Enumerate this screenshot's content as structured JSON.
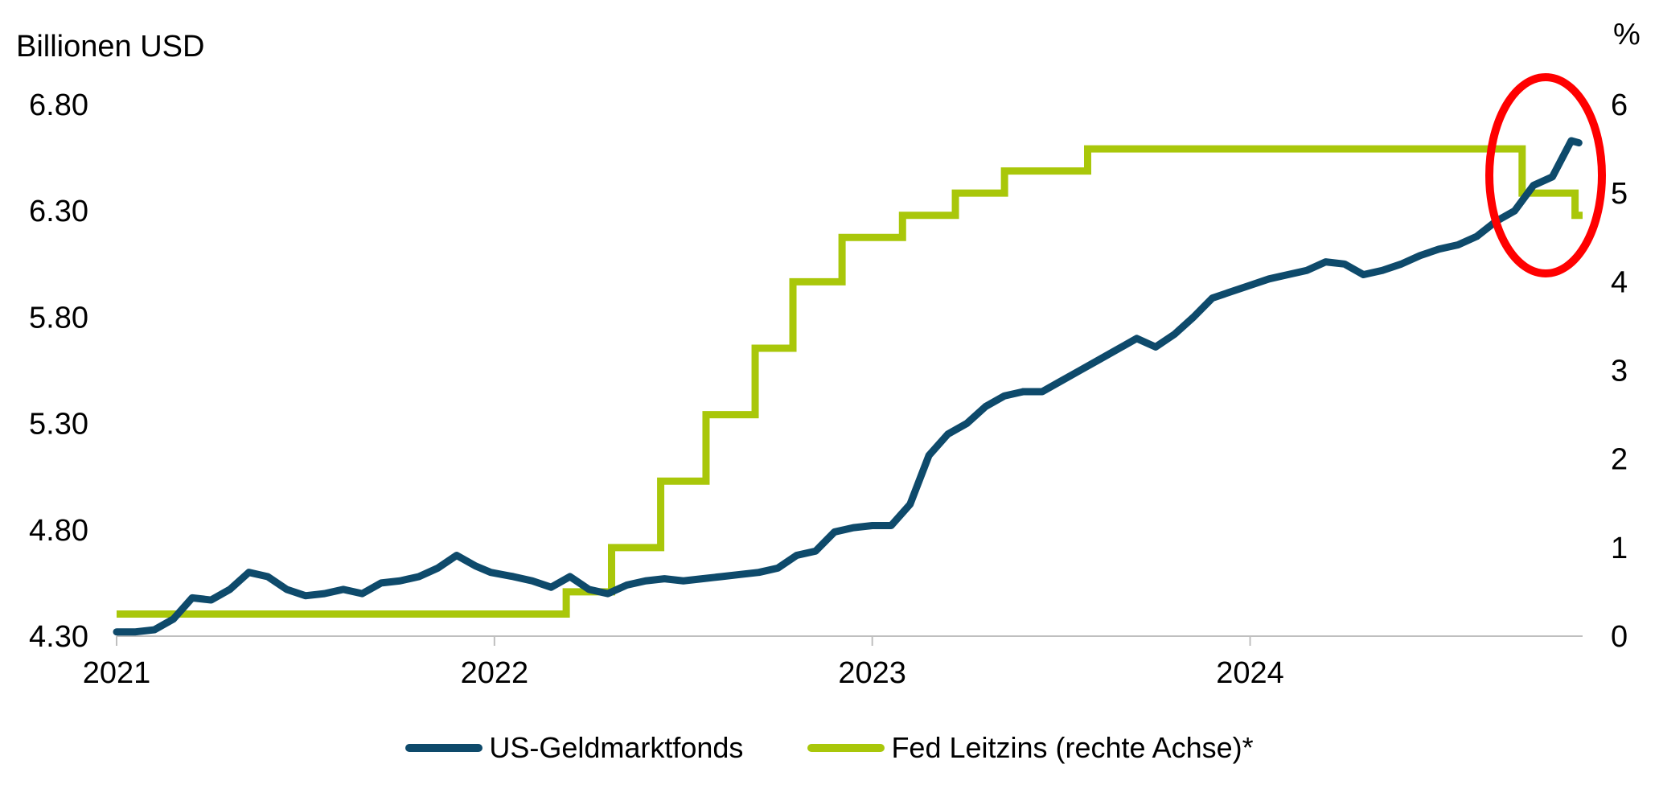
{
  "chart_data": {
    "type": "line",
    "ylabel_left": "Billionen USD",
    "ylabel_right": "%",
    "y_left_ticks": [
      "6.80",
      "6.30",
      "5.80",
      "5.30",
      "4.80",
      "4.30"
    ],
    "y_left_range": [
      4.3,
      6.8
    ],
    "y_right_ticks": [
      "6",
      "5",
      "4",
      "3",
      "2",
      "1",
      "0"
    ],
    "y_right_range": [
      0,
      6
    ],
    "x_ticks": [
      "2021",
      "2022",
      "2023",
      "2024"
    ],
    "x_range": [
      2021.0,
      2024.88
    ],
    "annotation": {
      "type": "red-ellipse-highlight",
      "color": "#ff0000",
      "marks": "rate cut late 2024"
    },
    "series": [
      {
        "name": "US-Geldmarktfonds",
        "axis": "left",
        "color": "#0e4a6b",
        "x": [
          2021.0,
          2021.05,
          2021.1,
          2021.15,
          2021.2,
          2021.25,
          2021.3,
          2021.35,
          2021.4,
          2021.45,
          2021.5,
          2021.55,
          2021.6,
          2021.65,
          2021.7,
          2021.75,
          2021.8,
          2021.85,
          2021.9,
          2021.95,
          2021.99,
          2022.05,
          2022.1,
          2022.15,
          2022.2,
          2022.25,
          2022.3,
          2022.35,
          2022.4,
          2022.45,
          2022.5,
          2022.55,
          2022.6,
          2022.65,
          2022.7,
          2022.75,
          2022.8,
          2022.85,
          2022.9,
          2022.95,
          2023.0,
          2023.05,
          2023.1,
          2023.15,
          2023.2,
          2023.25,
          2023.3,
          2023.35,
          2023.4,
          2023.45,
          2023.5,
          2023.55,
          2023.6,
          2023.65,
          2023.7,
          2023.75,
          2023.8,
          2023.85,
          2023.9,
          2023.95,
          2024.0,
          2024.05,
          2024.1,
          2024.15,
          2024.2,
          2024.25,
          2024.3,
          2024.35,
          2024.4,
          2024.45,
          2024.5,
          2024.55,
          2024.6,
          2024.65,
          2024.7,
          2024.75,
          2024.8,
          2024.85,
          2024.87
        ],
        "values": [
          4.32,
          4.32,
          4.33,
          4.38,
          4.48,
          4.47,
          4.52,
          4.6,
          4.58,
          4.52,
          4.49,
          4.5,
          4.52,
          4.5,
          4.55,
          4.56,
          4.58,
          4.62,
          4.68,
          4.63,
          4.6,
          4.58,
          4.56,
          4.53,
          4.58,
          4.52,
          4.5,
          4.54,
          4.56,
          4.57,
          4.56,
          4.57,
          4.58,
          4.59,
          4.6,
          4.62,
          4.68,
          4.7,
          4.79,
          4.81,
          4.82,
          4.82,
          4.92,
          5.15,
          5.25,
          5.3,
          5.38,
          5.43,
          5.45,
          5.45,
          5.5,
          5.55,
          5.6,
          5.65,
          5.7,
          5.66,
          5.72,
          5.8,
          5.89,
          5.92,
          5.95,
          5.98,
          6.0,
          6.02,
          6.06,
          6.05,
          6.0,
          6.02,
          6.05,
          6.09,
          6.12,
          6.14,
          6.18,
          6.25,
          6.3,
          6.42,
          6.46,
          6.63,
          6.62
        ]
      },
      {
        "name": "Fed Leitzins (rechte Achse)*",
        "axis": "right",
        "color": "#a9c70a",
        "step_x": [
          2021.0,
          2022.19,
          2022.31,
          2022.44,
          2022.56,
          2022.69,
          2022.79,
          2022.92,
          2023.08,
          2023.22,
          2023.35,
          2023.57,
          2024.72,
          2024.86,
          2024.88
        ],
        "step_values": [
          0.25,
          0.5,
          1.0,
          1.75,
          2.5,
          3.25,
          4.0,
          4.5,
          4.75,
          5.0,
          5.25,
          5.5,
          5.0,
          4.75,
          4.75
        ]
      }
    ],
    "legend": [
      "US-Geldmarktfonds",
      "Fed Leitzins (rechte Achse)*"
    ],
    "legend_position": "bottom",
    "grid": false
  }
}
